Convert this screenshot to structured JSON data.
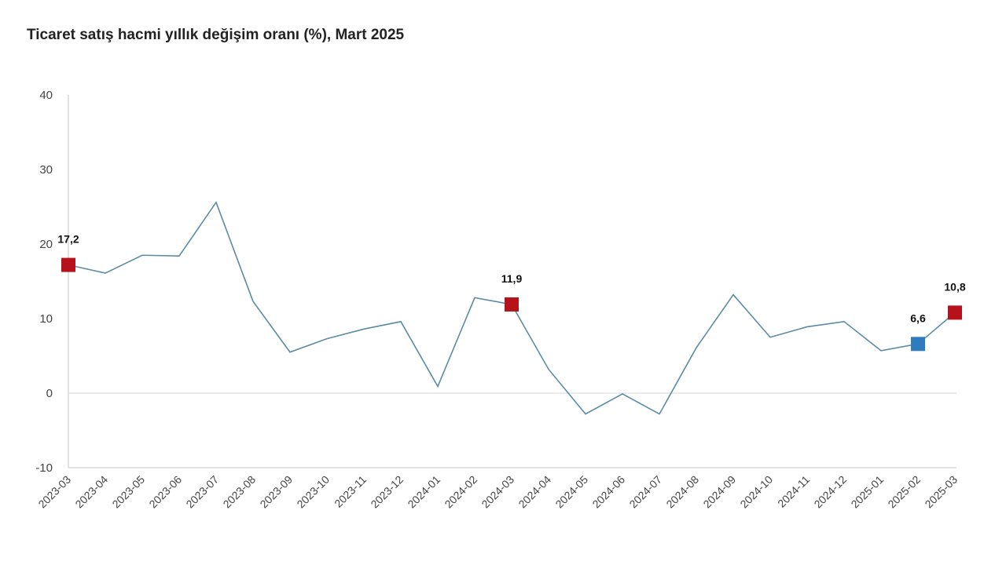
{
  "title": "Ticaret satış hacmi yıllık değişim oranı (%), Mart 2025",
  "colors": {
    "line": "#5b8ba6",
    "highlight_red": "#b5121b",
    "highlight_blue": "#2e7bbf",
    "grid": "#e3e3e3",
    "axis": "#d9d9d9"
  },
  "chart_data": {
    "type": "line",
    "title": "Ticaret satış hacmi yıllık değişim oranı (%), Mart 2025",
    "xlabel": "",
    "ylabel": "",
    "ylim": [
      -10,
      40
    ],
    "yticks": [
      40,
      30,
      20,
      10,
      0,
      -10
    ],
    "grid": "zero-line only",
    "legend": "none",
    "categories": [
      "2023-03",
      "2023-04",
      "2023-05",
      "2023-06",
      "2023-07",
      "2023-08",
      "2023-09",
      "2023-10",
      "2023-11",
      "2023-12",
      "2024-01",
      "2024-02",
      "2024-03",
      "2024-04",
      "2024-05",
      "2024-06",
      "2024-07",
      "2024-08",
      "2024-09",
      "2024-10",
      "2024-11",
      "2024-12",
      "2025-01",
      "2025-02",
      "2025-03"
    ],
    "series": [
      {
        "name": "Ticaret satış hacmi yıllık değişim oranı (%)",
        "values": [
          17.2,
          16.1,
          18.5,
          18.4,
          25.6,
          12.3,
          5.5,
          7.3,
          8.6,
          9.6,
          0.9,
          12.8,
          11.9,
          3.2,
          -2.8,
          -0.1,
          -2.8,
          6.1,
          13.2,
          7.5,
          8.9,
          9.6,
          5.7,
          6.6,
          10.8
        ]
      }
    ],
    "annotations": [
      {
        "category": "2023-03",
        "label": "17,2",
        "marker": "red-square"
      },
      {
        "category": "2024-03",
        "label": "11,9",
        "marker": "red-square"
      },
      {
        "category": "2025-02",
        "label": "6,6",
        "marker": "blue-square"
      },
      {
        "category": "2025-03",
        "label": "10,8",
        "marker": "red-square"
      }
    ]
  }
}
